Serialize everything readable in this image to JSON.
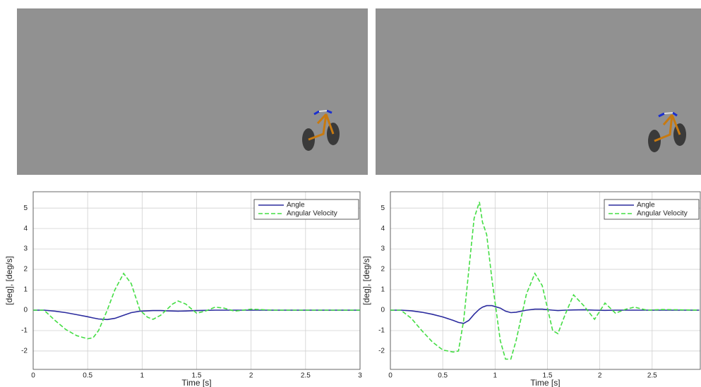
{
  "chart_data": [
    {
      "type": "line",
      "xlabel": "Time [s]",
      "ylabel": "[deg], [deg/s]",
      "x": [
        0,
        0.1,
        0.2,
        0.3,
        0.4,
        0.5,
        0.55,
        0.6,
        0.68,
        0.75,
        0.83,
        0.9,
        0.98,
        1.05,
        1.1,
        1.17,
        1.22,
        1.28,
        1.33,
        1.4,
        1.5,
        1.58,
        1.67,
        1.75,
        1.85,
        2.0,
        2.2,
        2.5,
        3.0
      ],
      "series": [
        {
          "name": "Angle",
          "color": "#2b2b9e",
          "dashed": false,
          "values": [
            0,
            0,
            -0.05,
            -0.12,
            -0.22,
            -0.32,
            -0.38,
            -0.43,
            -0.46,
            -0.4,
            -0.25,
            -0.12,
            -0.05,
            -0.03,
            -0.02,
            -0.02,
            -0.03,
            -0.04,
            -0.05,
            -0.04,
            -0.02,
            -0.01,
            0,
            0,
            0,
            0,
            0,
            0,
            0
          ]
        },
        {
          "name": "Angular Velocity",
          "color": "#44dd44",
          "dashed": true,
          "values": [
            0,
            0,
            -0.5,
            -0.95,
            -1.25,
            -1.4,
            -1.35,
            -1.0,
            0,
            1.0,
            1.8,
            1.3,
            0,
            -0.35,
            -0.45,
            -0.25,
            0,
            0.3,
            0.45,
            0.3,
            -0.15,
            -0.05,
            0.15,
            0.1,
            -0.05,
            0.05,
            0,
            0,
            0
          ]
        }
      ],
      "xlim": [
        0,
        3
      ],
      "xticks": [
        0,
        0.5,
        1,
        1.5,
        2,
        2.5,
        3
      ],
      "ylim": [
        -2.9,
        5.8
      ],
      "yticks": [
        -2,
        -1,
        0,
        1,
        2,
        3,
        4,
        5
      ],
      "grid": true,
      "legend": "upper-right"
    },
    {
      "type": "line",
      "xlabel": "Time [s]",
      "ylabel": "[deg], [deg/s]",
      "x": [
        0,
        0.1,
        0.2,
        0.3,
        0.4,
        0.5,
        0.6,
        0.65,
        0.7,
        0.75,
        0.8,
        0.85,
        0.88,
        0.92,
        0.97,
        1.05,
        1.1,
        1.15,
        1.2,
        1.3,
        1.38,
        1.45,
        1.55,
        1.6,
        1.67,
        1.75,
        1.85,
        1.95,
        2.05,
        2.15,
        2.25,
        2.33,
        2.45,
        2.6,
        2.95
      ],
      "series": [
        {
          "name": "Angle",
          "color": "#2b2b9e",
          "dashed": false,
          "values": [
            0,
            0,
            -0.03,
            -0.1,
            -0.2,
            -0.33,
            -0.5,
            -0.6,
            -0.65,
            -0.5,
            -0.2,
            0.05,
            0.15,
            0.22,
            0.22,
            0.1,
            -0.05,
            -0.12,
            -0.1,
            0,
            0.05,
            0.05,
            0,
            -0.02,
            0,
            0.01,
            0.02,
            0,
            -0.01,
            0,
            0,
            0,
            0,
            0,
            0
          ]
        },
        {
          "name": "Angular Velocity",
          "color": "#44dd44",
          "dashed": true,
          "values": [
            0,
            0,
            -0.4,
            -1.0,
            -1.55,
            -1.95,
            -2.05,
            -2.0,
            -0.5,
            2.0,
            4.5,
            5.3,
            4.3,
            3.7,
            1.5,
            -1.5,
            -2.4,
            -2.4,
            -1.5,
            0.8,
            1.8,
            1.2,
            -1.0,
            -1.15,
            -0.2,
            0.75,
            0.2,
            -0.45,
            0.35,
            -0.15,
            0.05,
            0.15,
            0,
            0.03,
            0
          ]
        }
      ],
      "xlim": [
        0,
        2.96
      ],
      "xticks": [
        0,
        0.5,
        1,
        1.5,
        2,
        2.5
      ],
      "ylim": [
        -2.9,
        5.8
      ],
      "yticks": [
        -2,
        -1,
        0,
        1,
        2,
        3,
        4,
        5
      ],
      "grid": true,
      "legend": "upper-right"
    }
  ]
}
